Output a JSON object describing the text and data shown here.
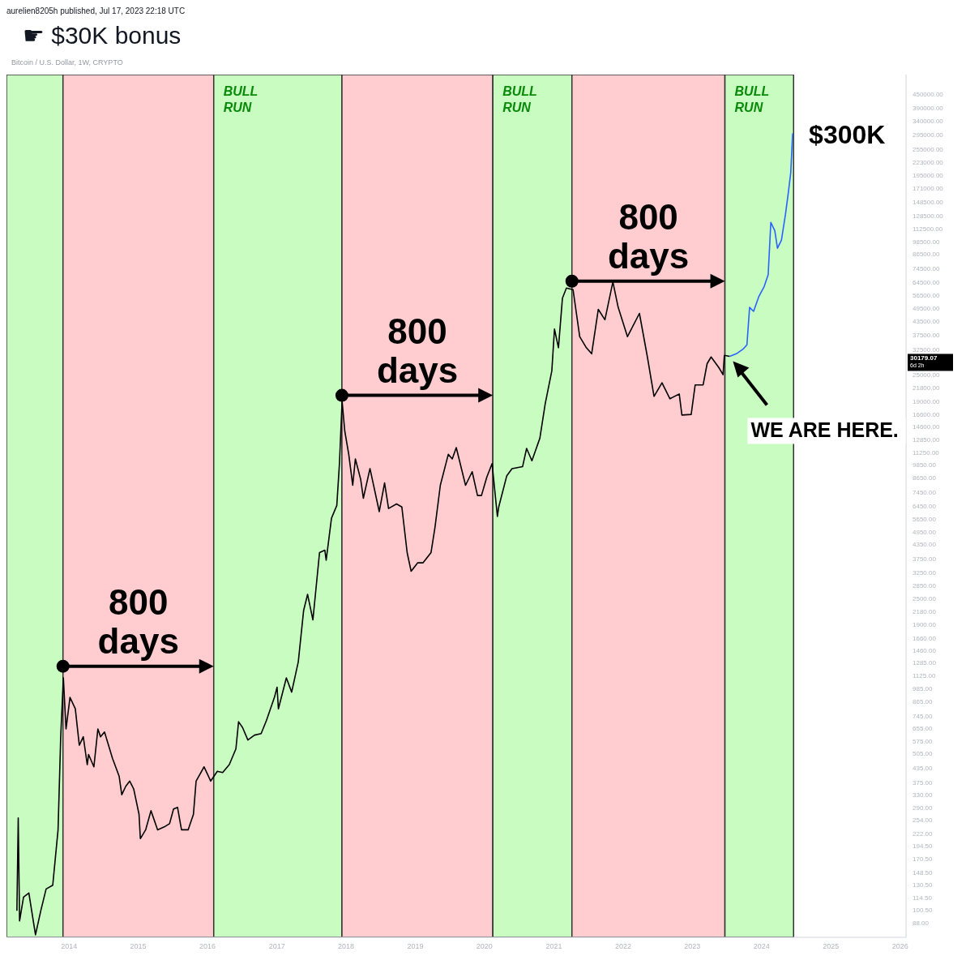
{
  "chart_data": {
    "type": "line",
    "title": "☛ $30K bonus",
    "subtitle": "Bitcoin / U.S. Dollar, 1W, CRYPTO",
    "annotations": [
      "aurelien8205h published, Jul 17, 2023 22:18 UTC",
      {
        "text": "800 days",
        "x": "2013-11-30",
        "y": 1240
      },
      {
        "text": "800 days",
        "x": "2017-12-10",
        "y": 20200
      },
      {
        "text": "800 days",
        "x": "2021-04-06",
        "y": 65500
      },
      "WE ARE HERE.",
      {
        "text": "$300K",
        "x": "2024-06-13",
        "y": 300000
      },
      "30179.07",
      "6d 2h"
    ],
    "log": true,
    "xlim": [
      "2013-02-05",
      "2026-02-01"
    ],
    "xticks": [
      {
        "value": "2014",
        "label": "2014"
      },
      {
        "value": "2015",
        "label": "2015"
      },
      {
        "value": "2016",
        "label": "2016"
      },
      {
        "value": "2017",
        "label": "2017"
      },
      {
        "value": "2018",
        "label": "2018"
      },
      {
        "value": "2019",
        "label": "2019"
      },
      {
        "value": "2020",
        "label": "2020"
      },
      {
        "value": "2021",
        "label": "2021"
      },
      {
        "value": "2022",
        "label": "2022"
      },
      {
        "value": "2023",
        "label": "2023"
      },
      {
        "value": "2024",
        "label": "2024"
      },
      {
        "value": "2025",
        "label": "2025"
      },
      {
        "value": "2026",
        "label": "2026"
      }
    ],
    "ylim": [
      76,
      550000
    ],
    "yticks": [
      {
        "value": 450000,
        "label": "450000.00"
      },
      {
        "value": 390000,
        "label": "390000.00"
      },
      {
        "value": 340000,
        "label": "340000.00"
      },
      {
        "value": 295000,
        "label": "295000.00"
      },
      {
        "value": 255000,
        "label": "255000.00"
      },
      {
        "value": 223000,
        "label": "223000.00"
      },
      {
        "value": 195000,
        "label": "195000.00"
      },
      {
        "value": 171000,
        "label": "171000.00"
      },
      {
        "value": 148500,
        "label": "148500.00"
      },
      {
        "value": 128500,
        "label": "128500.00"
      },
      {
        "value": 112500,
        "label": "112500.00"
      },
      {
        "value": 98500,
        "label": "98500.00"
      },
      {
        "value": 86500,
        "label": "86500.00"
      },
      {
        "value": 74500,
        "label": "74500.00"
      },
      {
        "value": 64500,
        "label": "64500.00"
      },
      {
        "value": 56500,
        "label": "56500.00"
      },
      {
        "value": 49500,
        "label": "49500.00"
      },
      {
        "value": 43500,
        "label": "43500.00"
      },
      {
        "value": 37500,
        "label": "37500.00"
      },
      {
        "value": 32500,
        "label": "32500.00"
      },
      {
        "value": 25000,
        "label": "25000.00"
      },
      {
        "value": 21800,
        "label": "21800.00"
      },
      {
        "value": 19000,
        "label": "19000.00"
      },
      {
        "value": 16600,
        "label": "16600.00"
      },
      {
        "value": 14600,
        "label": "14600.00"
      },
      {
        "value": 12850,
        "label": "12850.00"
      },
      {
        "value": 11250,
        "label": "11250.00"
      },
      {
        "value": 9850,
        "label": "9850.00"
      },
      {
        "value": 8650,
        "label": "8650.00"
      },
      {
        "value": 7450,
        "label": "7450.00"
      },
      {
        "value": 6450,
        "label": "6450.00"
      },
      {
        "value": 5650,
        "label": "5650.00"
      },
      {
        "value": 4950,
        "label": "4950.00"
      },
      {
        "value": 4350,
        "label": "4350.00"
      },
      {
        "value": 3750,
        "label": "3750.00"
      },
      {
        "value": 3250,
        "label": "3250.00"
      },
      {
        "value": 2850,
        "label": "2850.00"
      },
      {
        "value": 2500,
        "label": "2500.00"
      },
      {
        "value": 2180,
        "label": "2180.00"
      },
      {
        "value": 1900,
        "label": "1900.00"
      },
      {
        "value": 1660,
        "label": "1660.00"
      },
      {
        "value": 1460,
        "label": "1460.00"
      },
      {
        "value": 1285,
        "label": "1285.00"
      },
      {
        "value": 1125,
        "label": "1125.00"
      },
      {
        "value": 985,
        "label": "985.00"
      },
      {
        "value": 865,
        "label": "865.00"
      },
      {
        "value": 745,
        "label": "745.00"
      },
      {
        "value": 655,
        "label": "655.00"
      },
      {
        "value": 575,
        "label": "575.00"
      },
      {
        "value": 505,
        "label": "505.00"
      },
      {
        "value": 435,
        "label": "435.00"
      },
      {
        "value": 375,
        "label": "375.00"
      },
      {
        "value": 330,
        "label": "330.00"
      },
      {
        "value": 290,
        "label": "290.00"
      },
      {
        "value": 254,
        "label": "254.00"
      },
      {
        "value": 222,
        "label": "222.00"
      },
      {
        "value": 194.5,
        "label": "194.50"
      },
      {
        "value": 170.5,
        "label": "170.50"
      },
      {
        "value": 148.5,
        "label": "148.50"
      },
      {
        "value": 130.5,
        "label": "130.50"
      },
      {
        "value": 114.5,
        "label": "114.50"
      },
      {
        "value": 100.5,
        "label": "100.50"
      },
      {
        "value": 88,
        "label": "88.00"
      }
    ],
    "bands": [
      {
        "axis": "x",
        "from": "2013-02-05",
        "to": "2013-11-30",
        "label": null,
        "color": "#c8fcc0"
      },
      {
        "axis": "x",
        "from": "2013-11-30",
        "to": "2016-02-03",
        "label": null,
        "color": "#ffcdd0"
      },
      {
        "axis": "x",
        "from": "2016-02-03",
        "to": "2017-12-10",
        "label": "BULL RUN",
        "color": "#c8fcc0"
      },
      {
        "axis": "x",
        "from": "2017-12-10",
        "to": "2020-02-14",
        "label": null,
        "color": "#ffcdd0"
      },
      {
        "axis": "x",
        "from": "2020-02-14",
        "to": "2021-04-06",
        "label": "BULL RUN",
        "color": "#c8fcc0"
      },
      {
        "axis": "x",
        "from": "2021-04-06",
        "to": "2023-06-22",
        "label": null,
        "color": "#ffcdd0"
      },
      {
        "axis": "x",
        "from": "2023-06-22",
        "to": "2024-06-18",
        "label": "BULL RUN",
        "color": "#c8fcc0"
      }
    ],
    "series": [
      {
        "color": "#000000",
        "x": [
          "2013-04-01",
          "2013-04-08",
          "2013-04-15",
          "2013-05-06",
          "2013-06-03",
          "2013-07-01",
          "2013-07-08",
          "2013-08-05",
          "2013-09-02",
          "2013-10-07",
          "2013-11-04",
          "2013-11-18",
          "2013-12-02",
          "2013-12-16",
          "2014-01-06",
          "2014-02-03",
          "2014-02-24",
          "2014-03-17",
          "2014-04-07",
          "2014-04-14",
          "2014-05-12",
          "2014-06-02",
          "2014-06-16",
          "2014-07-07",
          "2014-08-18",
          "2014-09-22",
          "2014-10-06",
          "2014-10-27",
          "2014-11-17",
          "2014-12-08",
          "2015-01-05",
          "2015-01-12",
          "2015-02-09",
          "2015-03-09",
          "2015-04-13",
          "2015-05-18",
          "2015-06-15",
          "2015-07-06",
          "2015-07-27",
          "2015-08-17",
          "2015-09-21",
          "2015-10-19",
          "2015-11-02",
          "2015-12-14",
          "2016-01-18",
          "2016-02-22",
          "2016-03-21",
          "2016-04-25",
          "2016-05-30",
          "2016-06-13",
          "2016-07-04",
          "2016-08-01",
          "2016-09-05",
          "2016-10-10",
          "2016-11-07",
          "2016-12-19",
          "2017-01-02",
          "2017-01-09",
          "2017-02-20",
          "2017-03-20",
          "2017-04-24",
          "2017-05-22",
          "2017-06-12",
          "2017-07-10",
          "2017-08-14",
          "2017-09-11",
          "2017-09-18",
          "2017-10-16",
          "2017-11-13",
          "2017-11-27",
          "2017-12-11",
          "2017-12-25",
          "2018-01-15",
          "2018-02-05",
          "2018-02-19",
          "2018-03-19",
          "2018-04-02",
          "2018-05-07",
          "2018-06-25",
          "2018-07-23",
          "2018-08-13",
          "2018-09-24",
          "2018-10-22",
          "2018-11-19",
          "2018-12-10",
          "2019-01-14",
          "2019-02-11",
          "2019-03-25",
          "2019-04-15",
          "2019-05-13",
          "2019-06-24",
          "2019-07-15",
          "2019-08-05",
          "2019-09-23",
          "2019-10-28",
          "2019-11-25",
          "2019-12-16",
          "2020-01-13",
          "2020-02-10",
          "2020-03-09",
          "2020-03-16",
          "2020-04-27",
          "2020-05-25",
          "2020-07-20",
          "2020-08-10",
          "2020-09-07",
          "2020-10-19",
          "2020-11-16",
          "2020-12-21",
          "2021-01-04",
          "2021-01-25",
          "2021-02-15",
          "2021-03-08",
          "2021-04-12",
          "2021-05-17",
          "2021-06-21",
          "2021-07-19",
          "2021-08-23",
          "2021-09-27",
          "2021-11-08",
          "2021-12-06",
          "2022-01-24",
          "2022-03-28",
          "2022-05-09",
          "2022-06-13",
          "2022-07-25",
          "2022-09-05",
          "2022-10-24",
          "2022-11-07",
          "2022-12-26",
          "2023-01-16",
          "2023-02-27",
          "2023-03-20",
          "2023-04-10",
          "2023-05-22",
          "2023-06-12",
          "2023-06-19",
          "2023-07-17"
        ],
        "values": [
          100,
          260,
          90,
          115,
          120,
          85,
          78,
          100,
          125,
          130,
          230,
          600,
          1100,
          650,
          900,
          800,
          550,
          600,
          450,
          500,
          440,
          650,
          600,
          630,
          480,
          400,
          330,
          360,
          380,
          350,
          270,
          210,
          230,
          280,
          230,
          237,
          245,
          285,
          290,
          230,
          230,
          270,
          380,
          440,
          380,
          420,
          415,
          450,
          530,
          700,
          660,
          580,
          610,
          620,
          710,
          900,
          1000,
          800,
          1100,
          950,
          1300,
          2200,
          2600,
          2000,
          4000,
          4100,
          3700,
          5700,
          6500,
          10000,
          19000,
          14000,
          11000,
          8000,
          10500,
          8500,
          7000,
          9500,
          6100,
          8200,
          6300,
          6600,
          6400,
          4000,
          3300,
          3600,
          3600,
          4000,
          5200,
          8000,
          11000,
          10500,
          11800,
          8000,
          9200,
          7200,
          7200,
          8700,
          10000,
          5800,
          6400,
          8800,
          9500,
          9700,
          11700,
          10300,
          13000,
          18500,
          26000,
          40000,
          33000,
          55000,
          61000,
          60000,
          37000,
          33000,
          31000,
          49000,
          44000,
          65000,
          50000,
          37000,
          47000,
          30000,
          20000,
          23000,
          19500,
          20500,
          16500,
          16600,
          22500,
          22500,
          28000,
          30000,
          26800,
          25000,
          30500,
          30200
        ]
      },
      {
        "color": "#2962ff",
        "x": [
          "2023-07-17",
          "2023-08-21",
          "2023-09-25",
          "2023-10-16",
          "2023-10-30",
          "2023-11-20",
          "2023-12-18",
          "2024-01-15",
          "2024-02-05",
          "2024-02-19",
          "2024-03-11",
          "2024-03-25",
          "2024-04-15",
          "2024-05-06",
          "2024-05-20",
          "2024-06-03",
          "2024-06-13"
        ],
        "values": [
          30200,
          31000,
          32500,
          34000,
          50000,
          48000,
          56000,
          62000,
          70000,
          120000,
          110000,
          92000,
          100000,
          130000,
          160000,
          200000,
          300000
        ]
      }
    ]
  }
}
